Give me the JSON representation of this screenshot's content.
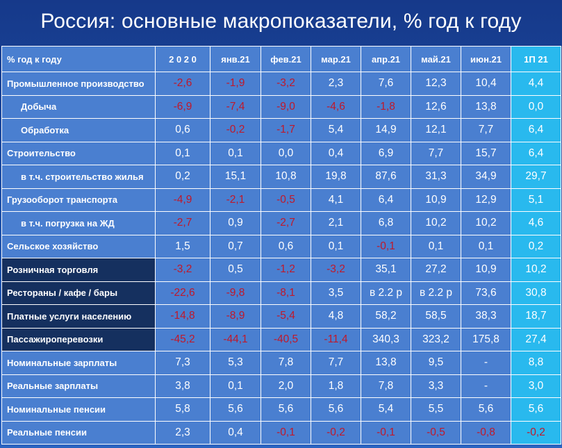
{
  "title": "Россия: основные макропоказатели, % год к году",
  "colors": {
    "background": "#1d4fa6",
    "cell": "#4a7fd0",
    "highlight_column": "#29b9ee",
    "dark_label": "#15305f",
    "negative_text": "#c0182a",
    "text": "#ffffff"
  },
  "table": {
    "header": [
      "% год к году",
      "2 0 2 0",
      "янв.21",
      "фев.21",
      "мар.21",
      "апр.21",
      "май.21",
      "июн.21",
      "1П 21"
    ],
    "rows": [
      {
        "label": "Промышленное производство",
        "indent": false,
        "dark": false,
        "values": [
          "-2,6",
          "-1,9",
          "-3,2",
          "2,3",
          "7,6",
          "12,3",
          "10,4",
          "4,4"
        ]
      },
      {
        "label": "Добыча",
        "indent": true,
        "dark": false,
        "values": [
          "-6,9",
          "-7,4",
          "-9,0",
          "-4,6",
          "-1,8",
          "12,6",
          "13,8",
          "0,0"
        ]
      },
      {
        "label": "Обработка",
        "indent": true,
        "dark": false,
        "values": [
          "0,6",
          "-0,2",
          "-1,7",
          "5,4",
          "14,9",
          "12,1",
          "7,7",
          "6,4"
        ]
      },
      {
        "label": "Строительство",
        "indent": false,
        "dark": false,
        "values": [
          "0,1",
          "0,1",
          "0,0",
          "0,4",
          "6,9",
          "7,7",
          "15,7",
          "6,4"
        ]
      },
      {
        "label": "в т.ч. строительство жилья",
        "indent": true,
        "dark": false,
        "values": [
          "0,2",
          "15,1",
          "10,8",
          "19,8",
          "87,6",
          "31,3",
          "34,9",
          "29,7"
        ]
      },
      {
        "label": "Грузооборот транспорта",
        "indent": false,
        "dark": false,
        "values": [
          "-4,9",
          "-2,1",
          "-0,5",
          "4,1",
          "6,4",
          "10,9",
          "12,9",
          "5,1"
        ]
      },
      {
        "label": "в т.ч. погрузка на ЖД",
        "indent": true,
        "dark": false,
        "values": [
          "-2,7",
          "0,9",
          "-2,7",
          "2,1",
          "6,8",
          "10,2",
          "10,2",
          "4,6"
        ]
      },
      {
        "label": "Сельское хозяйство",
        "indent": false,
        "dark": false,
        "values": [
          "1,5",
          "0,7",
          "0,6",
          "0,1",
          "-0,1",
          "0,1",
          "0,1",
          "0,2"
        ]
      },
      {
        "label": "Розничная торговля",
        "indent": false,
        "dark": true,
        "values": [
          "-3,2",
          "0,5",
          "-1,2",
          "-3,2",
          "35,1",
          "27,2",
          "10,9",
          "10,2"
        ]
      },
      {
        "label": "Рестораны / кафе / бары",
        "indent": false,
        "dark": true,
        "values": [
          "-22,6",
          "-9,8",
          "-8,1",
          "3,5",
          "в 2.2 р",
          "в 2.2 р",
          "73,6",
          "30,8"
        ]
      },
      {
        "label": "Платные услуги населению",
        "indent": false,
        "dark": true,
        "values": [
          "-14,8",
          "-8,9",
          "-5,4",
          "4,8",
          "58,2",
          "58,5",
          "38,3",
          "18,7"
        ]
      },
      {
        "label": "Пассажироперевозки",
        "indent": false,
        "dark": true,
        "values": [
          "-45,2",
          "-44,1",
          "-40,5",
          "-11,4",
          "340,3",
          "323,2",
          "175,8",
          "27,4"
        ]
      },
      {
        "label": "Номинальные зарплаты",
        "indent": false,
        "dark": false,
        "values": [
          "7,3",
          "5,3",
          "7,8",
          "7,7",
          "13,8",
          "9,5",
          "-",
          "8,8"
        ]
      },
      {
        "label": "Реальные зарплаты",
        "indent": false,
        "dark": false,
        "values": [
          "3,8",
          "0,1",
          "2,0",
          "1,8",
          "7,8",
          "3,3",
          "-",
          "3,0"
        ]
      },
      {
        "label": "Номинальные пенсии",
        "indent": false,
        "dark": false,
        "values": [
          "5,8",
          "5,6",
          "5,6",
          "5,6",
          "5,4",
          "5,5",
          "5,6",
          "5,6"
        ]
      },
      {
        "label": "Реальные пенсии",
        "indent": false,
        "dark": false,
        "values": [
          "2,3",
          "0,4",
          "-0,1",
          "-0,2",
          "-0,1",
          "-0,5",
          "-0,8",
          "-0,2"
        ]
      }
    ]
  }
}
